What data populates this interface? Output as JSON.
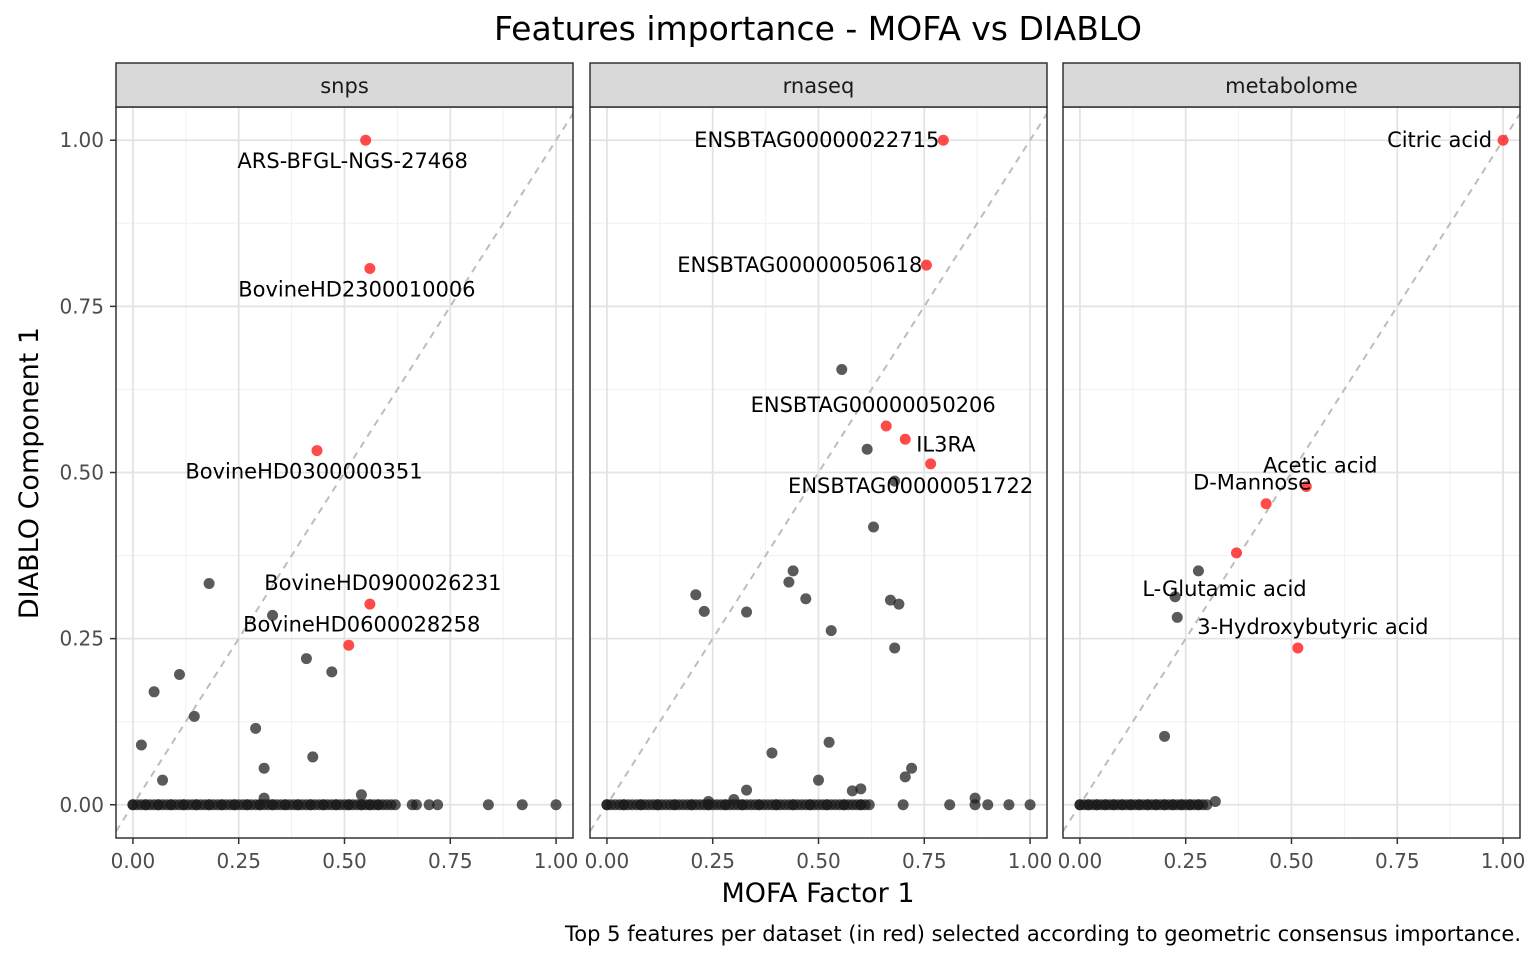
{
  "chart_data": {
    "type": "scatter",
    "title": "Features importance - MOFA vs DIABLO",
    "xlabel": "MOFA Factor 1",
    "ylabel": "DIABLO Component 1",
    "caption": "Top 5 features per dataset (in red) selected according to geometric consensus importance.",
    "xlim": [
      -0.04,
      1.04
    ],
    "ylim": [
      -0.05,
      1.05
    ],
    "x_ticks": [
      "0.00",
      "0.25",
      "0.50",
      "0.75",
      "1.00"
    ],
    "y_ticks": [
      "0.00",
      "0.25",
      "0.50",
      "0.75",
      "1.00"
    ],
    "grid": true,
    "diagonal_reference_line": true,
    "colors": {
      "top_feature": "#ff2a2a",
      "other_feature": "#1a1a1a",
      "strip": "#d9d9d9",
      "diagonal": "#bdbdbd"
    },
    "panels": [
      {
        "label": "snps",
        "points": [
          [
            0.02,
            0.09
          ],
          [
            0.05,
            0.17
          ],
          [
            0.07,
            0.037
          ],
          [
            0.11,
            0.196
          ],
          [
            0.145,
            0.133
          ],
          [
            0.18,
            0.333
          ],
          [
            0.29,
            0.115
          ],
          [
            0.31,
            0.055
          ],
          [
            0.31,
            0.01
          ],
          [
            0.33,
            0.285
          ],
          [
            0.41,
            0.22
          ],
          [
            0.425,
            0.072
          ],
          [
            0.47,
            0.2
          ],
          [
            0.54,
            0.015
          ],
          [
            0.0,
            0.0
          ],
          [
            0.03,
            0.0
          ],
          [
            0.06,
            0.0
          ],
          [
            0.09,
            0.0
          ],
          [
            0.12,
            0.0
          ],
          [
            0.15,
            0.0
          ],
          [
            0.18,
            0.0
          ],
          [
            0.21,
            0.0
          ],
          [
            0.24,
            0.0
          ],
          [
            0.27,
            0.0
          ],
          [
            0.3,
            0.0
          ],
          [
            0.33,
            0.0
          ],
          [
            0.36,
            0.0
          ],
          [
            0.39,
            0.0
          ],
          [
            0.42,
            0.0
          ],
          [
            0.45,
            0.0
          ],
          [
            0.48,
            0.0
          ],
          [
            0.51,
            0.0
          ],
          [
            0.54,
            0.0
          ],
          [
            0.56,
            0.0
          ],
          [
            0.58,
            0.0
          ],
          [
            0.62,
            0.0
          ],
          [
            0.66,
            0.0
          ],
          [
            0.67,
            0.0
          ],
          [
            0.7,
            0.0
          ],
          [
            0.72,
            0.0
          ],
          [
            0.84,
            0.0
          ],
          [
            0.92,
            0.0
          ],
          [
            1.0,
            0.0
          ]
        ],
        "highlighted": [
          {
            "name": "ARS-BFGL-NGS-27468",
            "x": 0.55,
            "y": 1.0
          },
          {
            "name": "BovineHD2300010006",
            "x": 0.56,
            "y": 0.807
          },
          {
            "name": "BovineHD0300000351",
            "x": 0.435,
            "y": 0.533
          },
          {
            "name": "BovineHD0900026231",
            "x": 0.56,
            "y": 0.302
          },
          {
            "name": "BovineHD0600028258",
            "x": 0.51,
            "y": 0.24
          }
        ]
      },
      {
        "label": "rnaseq",
        "points": [
          [
            0.555,
            0.655
          ],
          [
            0.615,
            0.535
          ],
          [
            0.68,
            0.487
          ],
          [
            0.63,
            0.418
          ],
          [
            0.44,
            0.352
          ],
          [
            0.43,
            0.335
          ],
          [
            0.21,
            0.316
          ],
          [
            0.47,
            0.31
          ],
          [
            0.67,
            0.308
          ],
          [
            0.69,
            0.302
          ],
          [
            0.23,
            0.291
          ],
          [
            0.33,
            0.29
          ],
          [
            0.53,
            0.262
          ],
          [
            0.68,
            0.236
          ],
          [
            0.39,
            0.078
          ],
          [
            0.525,
            0.094
          ],
          [
            0.5,
            0.037
          ],
          [
            0.72,
            0.055
          ],
          [
            0.705,
            0.042
          ],
          [
            0.6,
            0.024
          ],
          [
            0.58,
            0.021
          ],
          [
            0.33,
            0.022
          ],
          [
            0.87,
            0.01
          ],
          [
            0.3,
            0.008
          ],
          [
            0.24,
            0.005
          ],
          [
            0.0,
            0.0
          ],
          [
            0.04,
            0.0
          ],
          [
            0.08,
            0.0
          ],
          [
            0.12,
            0.0
          ],
          [
            0.16,
            0.0
          ],
          [
            0.2,
            0.0
          ],
          [
            0.24,
            0.0
          ],
          [
            0.28,
            0.0
          ],
          [
            0.32,
            0.0
          ],
          [
            0.36,
            0.0
          ],
          [
            0.4,
            0.0
          ],
          [
            0.44,
            0.0
          ],
          [
            0.48,
            0.0
          ],
          [
            0.52,
            0.0
          ],
          [
            0.56,
            0.0
          ],
          [
            0.6,
            0.0
          ],
          [
            0.62,
            0.0
          ],
          [
            0.7,
            0.0
          ],
          [
            0.81,
            0.0
          ],
          [
            0.87,
            0.0
          ],
          [
            0.9,
            0.0
          ],
          [
            0.95,
            0.0
          ],
          [
            1.0,
            0.0
          ]
        ],
        "highlighted": [
          {
            "name": "ENSBTAG00000022715",
            "x": 0.795,
            "y": 1.0
          },
          {
            "name": "ENSBTAG00000050618",
            "x": 0.755,
            "y": 0.812
          },
          {
            "name": "ENSBTAG00000050206",
            "x": 0.66,
            "y": 0.57
          },
          {
            "name": "IL3RA",
            "x": 0.705,
            "y": 0.55
          },
          {
            "name": "ENSBTAG00000051722",
            "x": 0.765,
            "y": 0.513
          }
        ]
      },
      {
        "label": "metabolome",
        "points": [
          [
            0.28,
            0.352
          ],
          [
            0.225,
            0.313
          ],
          [
            0.23,
            0.282
          ],
          [
            0.2,
            0.103
          ],
          [
            0.32,
            0.005
          ],
          [
            0.0,
            0.0
          ],
          [
            0.02,
            0.0
          ],
          [
            0.04,
            0.0
          ],
          [
            0.06,
            0.0
          ],
          [
            0.08,
            0.0
          ],
          [
            0.1,
            0.0
          ],
          [
            0.12,
            0.0
          ],
          [
            0.14,
            0.0
          ],
          [
            0.16,
            0.0
          ],
          [
            0.18,
            0.0
          ],
          [
            0.2,
            0.0
          ],
          [
            0.22,
            0.0
          ],
          [
            0.24,
            0.0
          ],
          [
            0.26,
            0.0
          ],
          [
            0.28,
            0.0
          ],
          [
            0.3,
            0.0
          ]
        ],
        "highlighted": [
          {
            "name": "Citric acid",
            "x": 1.0,
            "y": 1.0
          },
          {
            "name": "Acetic acid",
            "x": 0.535,
            "y": 0.479
          },
          {
            "name": "D-Mannose",
            "x": 0.44,
            "y": 0.453
          },
          {
            "name": "L-Glutamic acid",
            "x": 0.37,
            "y": 0.379
          },
          {
            "name": "3-Hydroxybutyric acid",
            "x": 0.515,
            "y": 0.236
          }
        ]
      }
    ]
  }
}
